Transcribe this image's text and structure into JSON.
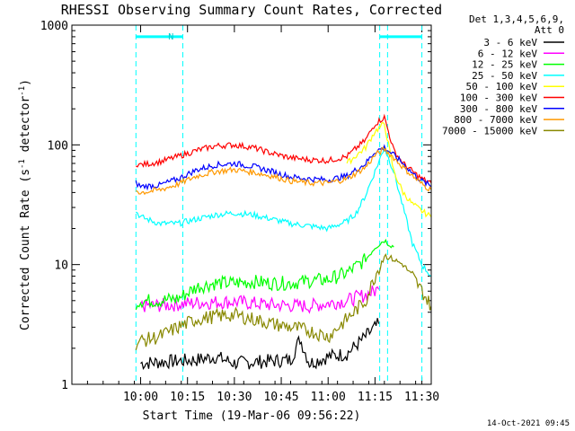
{
  "chart_data": {
    "type": "line",
    "title": "RHESSI Observing Summary Count Rates, Corrected",
    "xlabel": "Start Time (19-Mar-06 09:56:22)",
    "ylabel_parts": [
      "Corrected Count Rate (s",
      "-1",
      " detector",
      "-1",
      ")"
    ],
    "y_scale": "log",
    "ylim": [
      1,
      1000
    ],
    "y_ticks": [
      {
        "value": 1,
        "label": "1"
      },
      {
        "value": 10,
        "label": "10"
      },
      {
        "value": 100,
        "label": "100"
      },
      {
        "value": 1000,
        "label": "1000"
      }
    ],
    "x_range_minutes": [
      9.6333,
      11.55
    ],
    "x_ticks": [
      {
        "value": 10.0,
        "label": "10:00"
      },
      {
        "value": 10.25,
        "label": "10:15"
      },
      {
        "value": 10.5,
        "label": "10:30"
      },
      {
        "value": 10.75,
        "label": "10:45"
      },
      {
        "value": 11.0,
        "label": "11:00"
      },
      {
        "value": 11.25,
        "label": "11:15"
      },
      {
        "value": 11.5,
        "label": "11:30"
      }
    ],
    "legend_header": [
      "Det 1,3,4,5,6,9,",
      "Att 0"
    ],
    "legend_position": "right",
    "footer": "14-Oct-2021 09:45",
    "annotations": [
      {
        "text": "N",
        "x": 10.133
      },
      {
        "vertical_lines": [
          9.975,
          10.225,
          11.275,
          11.317,
          11.5
        ],
        "style": "dashed",
        "color": "#00ffff"
      }
    ],
    "bars": [
      {
        "from": 9.975,
        "to": 10.225,
        "y": 800,
        "color": "#00ffff"
      },
      {
        "from": 11.275,
        "to": 11.5,
        "y": 800,
        "color": "#00ffff"
      }
    ],
    "series": [
      {
        "name": "3 - 6 keV",
        "color": "#000000",
        "x": [
          10.0,
          10.3,
          10.4,
          10.5,
          10.8,
          10.85,
          10.9,
          11.0,
          11.1,
          11.2,
          11.27
        ],
        "y": [
          1.5,
          1.6,
          1.7,
          1.5,
          1.6,
          2.4,
          1.5,
          1.7,
          1.8,
          2.5,
          3.2
        ]
      },
      {
        "name": "6 - 12 keV",
        "color": "#ff00ff",
        "x": [
          10.0,
          10.15,
          10.3,
          10.5,
          10.7,
          10.9,
          11.1,
          11.2,
          11.27
        ],
        "y": [
          4.5,
          4.6,
          4.8,
          4.9,
          4.6,
          4.5,
          5.0,
          5.6,
          6.2
        ]
      },
      {
        "name": "12 - 25 keV",
        "color": "#00ff00",
        "x": [
          9.975,
          10.0,
          10.1,
          10.2,
          10.3,
          10.4,
          10.5,
          10.6,
          10.7,
          10.8,
          10.9,
          11.0,
          11.1,
          11.2,
          11.25,
          11.3,
          11.35
        ],
        "y": [
          4.8,
          5.0,
          5.0,
          5.2,
          6.5,
          7.0,
          7.0,
          7.2,
          7.0,
          7.0,
          7.3,
          7.5,
          8.5,
          11,
          14,
          16,
          14
        ]
      },
      {
        "name": "25 - 50 keV",
        "color": "#00ffff",
        "x": [
          9.975,
          10.0,
          10.1,
          10.2,
          10.3,
          10.4,
          10.5,
          10.6,
          10.7,
          10.8,
          10.9,
          11.0,
          11.1,
          11.15,
          11.2,
          11.25,
          11.3,
          11.35,
          11.4,
          11.45,
          11.5,
          11.55
        ],
        "y": [
          28,
          25,
          22,
          22,
          24,
          26,
          27,
          26,
          24,
          22,
          21,
          20,
          23,
          27,
          38,
          60,
          95,
          60,
          30,
          15,
          10,
          8
        ]
      },
      {
        "name": "50 - 100 keV",
        "color": "#ffff00",
        "x": [
          11.1,
          11.2,
          11.25,
          11.3,
          11.35,
          11.4,
          11.45,
          11.5,
          11.55
        ],
        "y": [
          70,
          95,
          130,
          150,
          60,
          40,
          32,
          28,
          25
        ]
      },
      {
        "name": "100 - 300 keV",
        "color": "#ff0000",
        "x": [
          9.975,
          10.0,
          10.1,
          10.2,
          10.3,
          10.4,
          10.5,
          10.6,
          10.7,
          10.8,
          10.9,
          11.0,
          11.1,
          11.2,
          11.25,
          11.3,
          11.35,
          11.4,
          11.45,
          11.5,
          11.55
        ],
        "y": [
          70,
          68,
          72,
          80,
          90,
          98,
          100,
          95,
          85,
          78,
          75,
          74,
          80,
          110,
          150,
          170,
          90,
          70,
          60,
          52,
          48
        ]
      },
      {
        "name": "300 - 800 keV",
        "color": "#0000ff",
        "x": [
          9.975,
          10.0,
          10.1,
          10.2,
          10.3,
          10.4,
          10.5,
          10.6,
          10.7,
          10.8,
          10.9,
          11.0,
          11.1,
          11.2,
          11.25,
          11.3,
          11.35,
          11.4,
          11.45,
          11.5,
          11.55
        ],
        "y": [
          48,
          45,
          46,
          52,
          62,
          68,
          70,
          66,
          60,
          54,
          52,
          51,
          55,
          70,
          88,
          95,
          82,
          70,
          58,
          50,
          45
        ]
      },
      {
        "name": "800 - 7000 keV",
        "color": "#ff9900",
        "x": [
          9.975,
          10.0,
          10.1,
          10.2,
          10.3,
          10.4,
          10.5,
          10.6,
          10.7,
          10.8,
          10.9,
          11.0,
          11.1,
          11.2,
          11.25,
          11.3,
          11.35,
          11.4,
          11.45,
          11.5,
          11.55
        ],
        "y": [
          42,
          40,
          42,
          47,
          55,
          60,
          62,
          59,
          55,
          50,
          48,
          48,
          52,
          65,
          82,
          92,
          78,
          65,
          55,
          47,
          42
        ]
      },
      {
        "name": "7000 - 15000 keV",
        "color": "#888800",
        "x": [
          9.975,
          10.0,
          10.1,
          10.2,
          10.3,
          10.4,
          10.5,
          10.6,
          10.7,
          10.8,
          10.9,
          11.0,
          11.1,
          11.2,
          11.25,
          11.3,
          11.35,
          11.4,
          11.45,
          11.5,
          11.55
        ],
        "y": [
          2.2,
          2.3,
          2.5,
          3.0,
          3.5,
          3.7,
          3.8,
          3.5,
          3.2,
          3.0,
          2.8,
          2.5,
          3.5,
          5.0,
          8.0,
          12.0,
          11.0,
          10.0,
          8.0,
          6.0,
          4.5
        ]
      }
    ]
  }
}
